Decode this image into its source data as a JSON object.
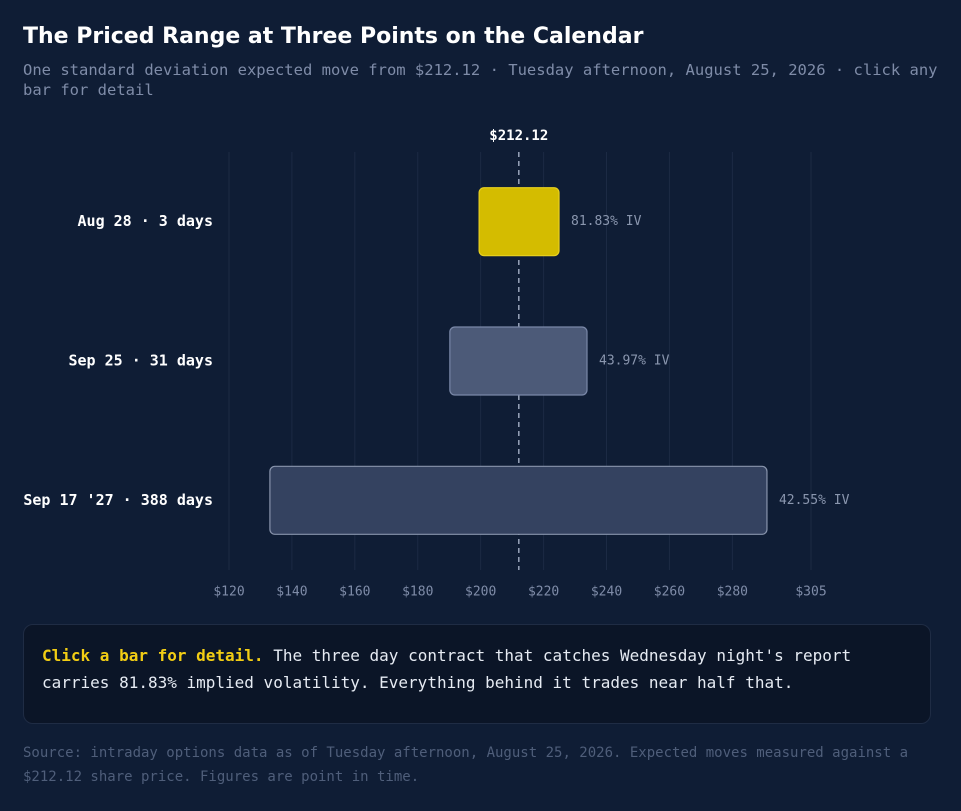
{
  "chart_data": {
    "type": "range",
    "title": "The Priced Range at Three Points on the Calendar",
    "subtitle": "One standard deviation expected move from $212.12 · Tuesday afternoon, August 25, 2026 · click any bar for detail",
    "categories": [
      "Aug 28 · 3 days",
      "Sep 25 · 31 days",
      "Sep 17 '27 · 388 days"
    ],
    "low": [
      199.5,
      190.2,
      133.0
    ],
    "high": [
      224.9,
      233.8,
      291.0
    ],
    "colors": [
      "#d4bc00",
      "#4c5a78",
      "#344260"
    ],
    "annotations": [
      "81.83% IV",
      "43.97% IV",
      "42.55% IV"
    ],
    "reference": {
      "value": 212.12,
      "label": "$212.12"
    },
    "xlim": [
      120,
      305
    ],
    "xticks": [
      {
        "value": 120,
        "label": "$120"
      },
      {
        "value": 140,
        "label": "$140"
      },
      {
        "value": 160,
        "label": "$160"
      },
      {
        "value": 180,
        "label": "$180"
      },
      {
        "value": 200,
        "label": "$200"
      },
      {
        "value": 220,
        "label": "$220"
      },
      {
        "value": 240,
        "label": "$240"
      },
      {
        "value": 260,
        "label": "$260"
      },
      {
        "value": 280,
        "label": "$280"
      },
      {
        "value": 305,
        "label": "$305"
      }
    ],
    "grid": true
  },
  "detail": {
    "heading": "Click a bar for detail.",
    "text": "The three day contract that catches Wednesday night's report carries 81.83% implied volatility. Everything behind it trades near half that."
  },
  "source": "Source: intraday options data as of Tuesday afternoon, August 25, 2026. Expected moves measured against a $212.12 share price. Figures are point in time."
}
